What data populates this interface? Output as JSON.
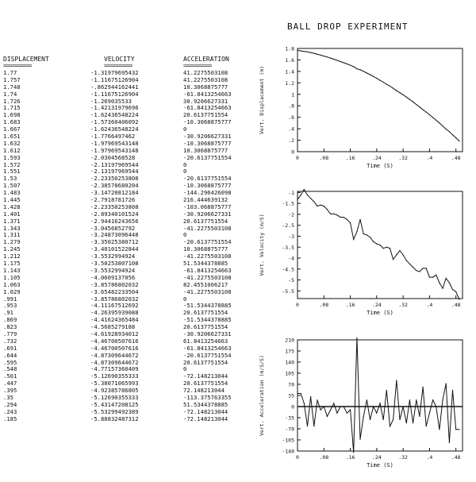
{
  "title": "BALL DROP EXPERIMENT",
  "table": {
    "headers": [
      "DISPLACEMENT",
      "VELOCITY",
      "ACCELERATION"
    ],
    "underline": "===========",
    "rows": [
      [
        "1.77",
        "-1.31979695432",
        "41.2275503108"
      ],
      [
        "1.757",
        "-1.11675126904",
        "41.2275503108"
      ],
      [
        "1.748",
        "-.862944162441",
        "10.3068875777"
      ],
      [
        "1.74",
        "-1.11675126904",
        "-61.8413254663"
      ],
      [
        "1.726",
        "-1.269035533",
        "30.9206627331"
      ],
      [
        "1.715",
        "-1.42131979696",
        "-61.8413254663"
      ],
      [
        "1.698",
        "-1.62436548224",
        "20.6137751554"
      ],
      [
        "1.683",
        "-1.57360406092",
        "-10.3068875777"
      ],
      [
        "1.667",
        "-1.62436548224",
        "0"
      ],
      [
        "1.651",
        "-1.7766497462",
        "-30.9206627331"
      ],
      [
        "1.632",
        "-1.97969543148",
        "-10.3068875777"
      ],
      [
        "1.612",
        "-1.97969543148",
        "10.3068875777"
      ],
      [
        "1.593",
        "-2.0304568528",
        "-20.6137751554"
      ],
      [
        "1.572",
        "-2.13197969544",
        "0"
      ],
      [
        "1.551",
        "-2.13197969544",
        "0"
      ],
      [
        "1.53",
        "-2.23350253808",
        "-20.6137751554"
      ],
      [
        "1.507",
        "-2.38578680204",
        "-10.3068875777"
      ],
      [
        "1.483",
        "-3.14720812184",
        "-144.296426098"
      ],
      [
        "1.445",
        "-2.7918781726",
        "216.444639132"
      ],
      [
        "1.428",
        "-2.23350253808",
        "-103.068875777"
      ],
      [
        "1.401",
        "-2.89340101524",
        "-30.9206627331"
      ],
      [
        "1.371",
        "-2.94416243656",
        "20.6137751554"
      ],
      [
        "1.343",
        "-3.0456852792",
        "-41.2275503108"
      ],
      [
        "1.311",
        "-3.24873096448",
        "0"
      ],
      [
        "1.279",
        "-3.35025380712",
        "-20.6137751554"
      ],
      [
        "1.245",
        "-3.40101522844",
        "10.3068875777"
      ],
      [
        "1.212",
        "-3.5532994924",
        "-41.2275503108"
      ],
      [
        "1.175",
        "-3.50253807108",
        "51.5344378885"
      ],
      [
        "1.143",
        "-3.5532994924",
        "-61.8413254663"
      ],
      [
        "1.105",
        "-4.0609137056",
        "-41.2275503108"
      ],
      [
        "1.063",
        "-3.85786802032",
        "82.4551006217"
      ],
      [
        "1.029",
        "-3.65482233504",
        "-41.2275503108"
      ],
      [
        ".991",
        "-3.85786802032",
        "0"
      ],
      [
        ".953",
        "-4.11167512692",
        "-51.5344378885"
      ],
      [
        ".91",
        "-4.26395939088",
        "20.6137751554"
      ],
      [
        ".869",
        "-4.41624365484",
        "-51.5344378885"
      ],
      [
        ".823",
        "-4.5685279188",
        "20.6137751554"
      ],
      [
        ".779",
        "-4.61928934012",
        "-30.9206627331"
      ],
      [
        ".732",
        "-4.46700507616",
        "61.8413254663"
      ],
      [
        ".691",
        "-4.46700507616",
        "-61.8413254663"
      ],
      [
        ".644",
        "-4.87309644672",
        "-20.6137751554"
      ],
      [
        ".595",
        "-4.87309644672",
        "20.6137751554"
      ],
      [
        ".548",
        "-4.77157360409",
        "0"
      ],
      [
        ".501",
        "-5.12690355333",
        "-72.148213044"
      ],
      [
        ".447",
        "-5.38071065993",
        "20.6137751554"
      ],
      [
        ".395",
        "-4.92385786805",
        "72.148213044"
      ],
      [
        ".35",
        "-5.12690355333",
        "-113.375763355"
      ],
      [
        ".294",
        "-5.43147208125",
        "51.5344378885"
      ],
      [
        ".243",
        "-5.53299492389",
        "-72.148213044"
      ],
      [
        ".185",
        "-5.88832487312",
        "-72.148213044"
      ]
    ]
  },
  "chart_data": [
    {
      "type": "line",
      "ylabel": "Vert. Displacement (m)",
      "xlabel": "Time (S)",
      "xticks": [
        "0",
        ".08",
        ".16",
        ".24",
        ".32",
        ".4",
        ".48"
      ],
      "yticks": [
        "0",
        ".2",
        ".4",
        ".6",
        ".8",
        "1",
        "1.2",
        "1.4",
        "1.6",
        "1.8"
      ],
      "xlim": [
        0,
        0.5
      ],
      "ylim": [
        0,
        1.8
      ],
      "grid": false,
      "x": [
        0,
        0.01,
        0.02,
        0.03,
        0.04,
        0.05,
        0.06,
        0.07,
        0.08,
        0.09,
        0.1,
        0.11,
        0.12,
        0.13,
        0.14,
        0.15,
        0.16,
        0.17,
        0.18,
        0.19,
        0.2,
        0.21,
        0.22,
        0.23,
        0.24,
        0.25,
        0.26,
        0.27,
        0.28,
        0.29,
        0.3,
        0.31,
        0.32,
        0.33,
        0.34,
        0.35,
        0.36,
        0.37,
        0.38,
        0.39,
        0.4,
        0.41,
        0.42,
        0.43,
        0.44,
        0.45,
        0.46,
        0.47,
        0.48,
        0.49
      ],
      "y": [
        1.77,
        1.757,
        1.748,
        1.74,
        1.726,
        1.715,
        1.698,
        1.683,
        1.667,
        1.651,
        1.632,
        1.612,
        1.593,
        1.572,
        1.551,
        1.53,
        1.507,
        1.483,
        1.445,
        1.428,
        1.401,
        1.371,
        1.343,
        1.311,
        1.279,
        1.245,
        1.212,
        1.175,
        1.143,
        1.105,
        1.063,
        1.029,
        0.991,
        0.953,
        0.91,
        0.869,
        0.823,
        0.779,
        0.732,
        0.691,
        0.644,
        0.595,
        0.548,
        0.501,
        0.447,
        0.395,
        0.35,
        0.294,
        0.243,
        0.185
      ]
    },
    {
      "type": "line",
      "ylabel": "Vert. Velocity (m/S)",
      "xlabel": "Time (S)",
      "xticks": [
        "0",
        ".08",
        ".16",
        ".24",
        ".32",
        ".4",
        ".48"
      ],
      "yticks": [
        "-1",
        "-1.5",
        "-2",
        "-2.5",
        "-3",
        "-3.5",
        "-4",
        "-4.5",
        "-5",
        "-5.5"
      ],
      "xlim": [
        0,
        0.5
      ],
      "ylim": [
        -5.85,
        -0.95
      ],
      "grid": false,
      "x": [
        0,
        0.01,
        0.02,
        0.03,
        0.04,
        0.05,
        0.06,
        0.07,
        0.08,
        0.09,
        0.1,
        0.11,
        0.12,
        0.13,
        0.14,
        0.15,
        0.16,
        0.17,
        0.18,
        0.19,
        0.2,
        0.21,
        0.22,
        0.23,
        0.24,
        0.25,
        0.26,
        0.27,
        0.28,
        0.29,
        0.3,
        0.31,
        0.32,
        0.33,
        0.34,
        0.35,
        0.36,
        0.37,
        0.38,
        0.39,
        0.4,
        0.41,
        0.42,
        0.43,
        0.44,
        0.45,
        0.46,
        0.47,
        0.48,
        0.49
      ],
      "y": [
        -1.32,
        -1.117,
        -0.863,
        -1.117,
        -1.269,
        -1.421,
        -1.624,
        -1.574,
        -1.624,
        -1.777,
        -1.98,
        -1.98,
        -2.03,
        -2.132,
        -2.132,
        -2.234,
        -2.386,
        -3.147,
        -2.792,
        -2.234,
        -2.893,
        -2.944,
        -3.046,
        -3.249,
        -3.35,
        -3.401,
        -3.553,
        -3.503,
        -3.553,
        -4.061,
        -3.858,
        -3.655,
        -3.858,
        -4.112,
        -4.264,
        -4.416,
        -4.569,
        -4.619,
        -4.467,
        -4.467,
        -4.873,
        -4.873,
        -4.772,
        -5.127,
        -5.381,
        -4.924,
        -5.127,
        -5.431,
        -5.533,
        -5.888
      ]
    },
    {
      "type": "line",
      "ylabel": "Vert. Acceleration (m/S/S)",
      "xlabel": "Time (S)",
      "xticks": [
        "0",
        ".08",
        ".16",
        ".24",
        ".32",
        ".4",
        ".48"
      ],
      "yticks": [
        "-140",
        "-105",
        "-70",
        "-35",
        "0",
        "35",
        "70",
        "105",
        "140",
        "175",
        "210"
      ],
      "xlim": [
        0,
        0.5
      ],
      "ylim": [
        -140,
        210
      ],
      "grid": false,
      "x": [
        0,
        0.01,
        0.02,
        0.03,
        0.04,
        0.05,
        0.06,
        0.07,
        0.08,
        0.09,
        0.1,
        0.11,
        0.12,
        0.13,
        0.14,
        0.15,
        0.16,
        0.17,
        0.18,
        0.19,
        0.2,
        0.21,
        0.22,
        0.23,
        0.24,
        0.25,
        0.26,
        0.27,
        0.28,
        0.29,
        0.3,
        0.31,
        0.32,
        0.33,
        0.34,
        0.35,
        0.36,
        0.37,
        0.38,
        0.39,
        0.4,
        0.41,
        0.42,
        0.43,
        0.44,
        0.45,
        0.46,
        0.47,
        0.48,
        0.49
      ],
      "y": [
        41.2,
        41.2,
        10.3,
        -61.8,
        30.9,
        -61.8,
        20.6,
        -10.3,
        0,
        -30.9,
        -10.3,
        10.3,
        -20.6,
        0,
        0,
        -20.6,
        -10.3,
        -144.3,
        216.4,
        -103.1,
        -30.9,
        20.6,
        -41.2,
        0,
        -20.6,
        10.3,
        -41.2,
        51.5,
        -61.8,
        -41.2,
        82.5,
        -41.2,
        0,
        -51.5,
        20.6,
        -51.5,
        20.6,
        -30.9,
        61.8,
        -61.8,
        -20.6,
        20.6,
        0,
        -72.1,
        20.6,
        72.1,
        -113.4,
        51.5,
        -72.1,
        -72.1
      ],
      "mean_line": 0
    }
  ]
}
